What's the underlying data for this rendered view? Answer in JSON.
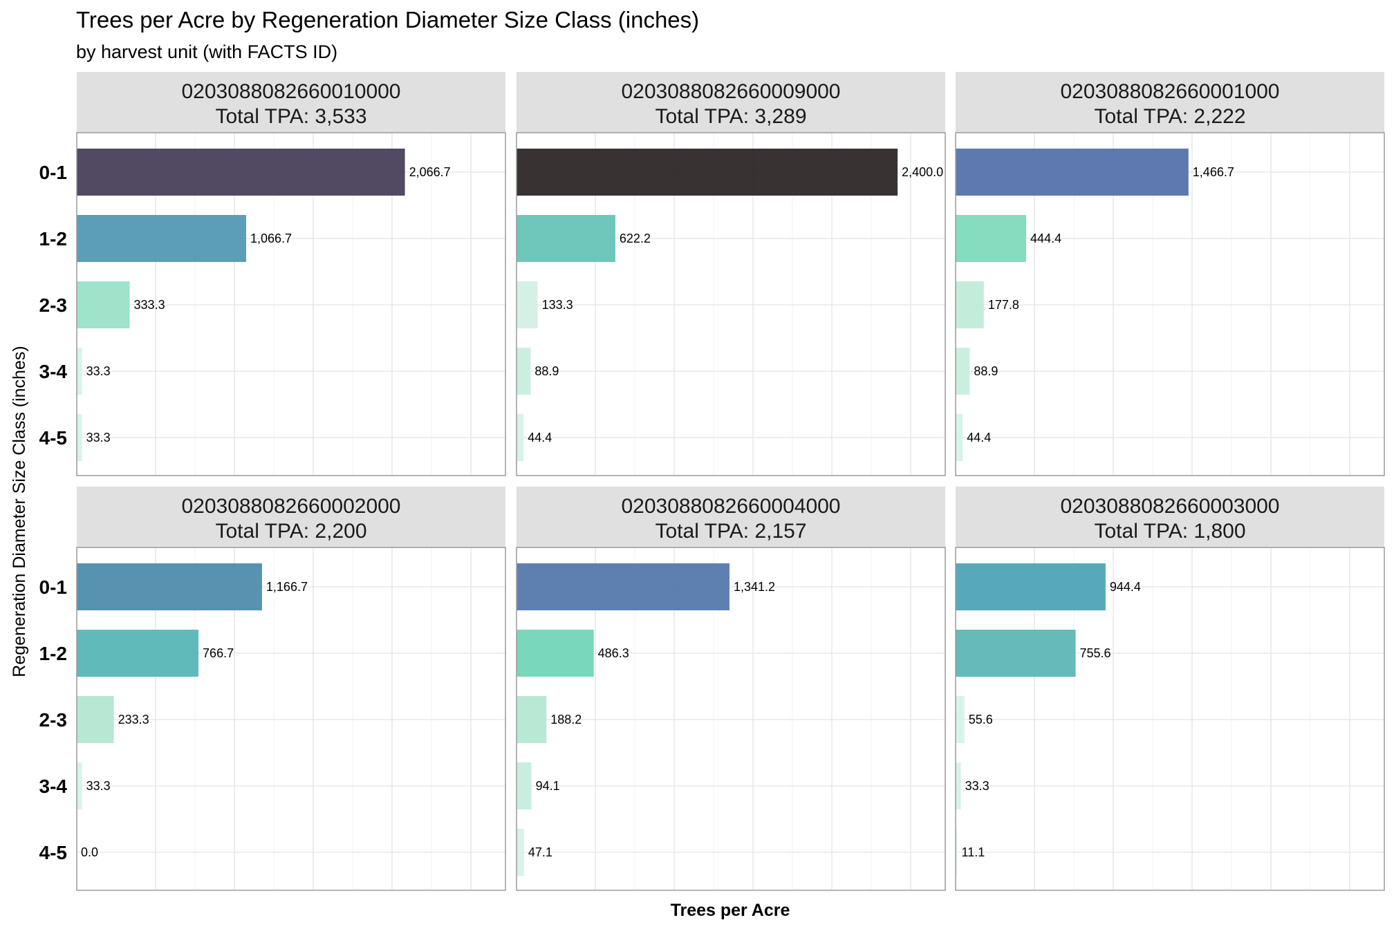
{
  "chart_data": {
    "type": "bar",
    "orientation": "horizontal",
    "title": "Trees per Acre by Regeneration Diameter Size Class (inches)",
    "subtitle": "by harvest unit (with FACTS ID)",
    "xlabel": "Trees per Acre",
    "ylabel": "Regeneration Diameter Size Class (inches)",
    "categories": [
      "0-1",
      "1-2",
      "2-3",
      "3-4",
      "4-5"
    ],
    "xlim": [
      0,
      2700
    ],
    "grid": true,
    "legend": "none",
    "facets": [
      {
        "unit_id": "0203088082660010000",
        "total_label": "Total TPA: 3,533",
        "values": [
          2066.7,
          1066.7,
          333.3,
          33.3,
          33.3
        ],
        "value_labels": [
          "2,066.7",
          "1,066.7",
          "333.3",
          "33.3",
          "33.3"
        ],
        "colors": [
          "#3f3552",
          "#4a92b0",
          "#93e0c4",
          "#d4f2e6",
          "#d4f2e6"
        ]
      },
      {
        "unit_id": "0203088082660009000",
        "total_label": "Total TPA: 3,289",
        "values": [
          2400.0,
          622.2,
          133.3,
          88.9,
          44.4
        ],
        "value_labels": [
          "2,400.0",
          "622.2",
          "133.3",
          "88.9",
          "44.4"
        ],
        "colors": [
          "#231c1c",
          "#5fc0b2",
          "#d0f0e2",
          "#c5eddc",
          "#d4f2e6"
        ]
      },
      {
        "unit_id": "0203088082660001000",
        "total_label": "Total TPA: 2,222",
        "values": [
          1466.7,
          444.4,
          177.8,
          88.9,
          44.4
        ],
        "value_labels": [
          "1,466.7",
          "444.4",
          "177.8",
          "88.9",
          "44.4"
        ],
        "colors": [
          "#4d6aa6",
          "#79d8b8",
          "#bdebd6",
          "#c5eddc",
          "#d4f2e6"
        ]
      },
      {
        "unit_id": "0203088082660002000",
        "total_label": "Total TPA: 2,200",
        "values": [
          1166.7,
          766.7,
          233.3,
          33.3,
          0.0
        ],
        "value_labels": [
          "1,166.7",
          "766.7",
          "233.3",
          "33.3",
          "0.0"
        ],
        "colors": [
          "#4686a8",
          "#50b2b2",
          "#aee6cf",
          "#d4f2e6",
          "#e6f7ef"
        ]
      },
      {
        "unit_id": "0203088082660004000",
        "total_label": "Total TPA: 2,157",
        "values": [
          1341.2,
          486.3,
          188.2,
          94.1,
          47.1
        ],
        "value_labels": [
          "1,341.2",
          "486.3",
          "188.2",
          "94.1",
          "47.1"
        ],
        "colors": [
          "#4d72a8",
          "#6ad3b4",
          "#b0e7d0",
          "#c3ecdb",
          "#d4f2e6"
        ]
      },
      {
        "unit_id": "0203088082660003000",
        "total_label": "Total TPA: 1,800",
        "values": [
          944.4,
          755.6,
          55.6,
          33.3,
          11.1
        ],
        "value_labels": [
          "944.4",
          "755.6",
          "55.6",
          "33.3",
          "11.1"
        ],
        "colors": [
          "#45a0b2",
          "#55b3b0",
          "#d4f2e6",
          "#d4f2e6",
          "#e0f5ec"
        ]
      }
    ]
  }
}
